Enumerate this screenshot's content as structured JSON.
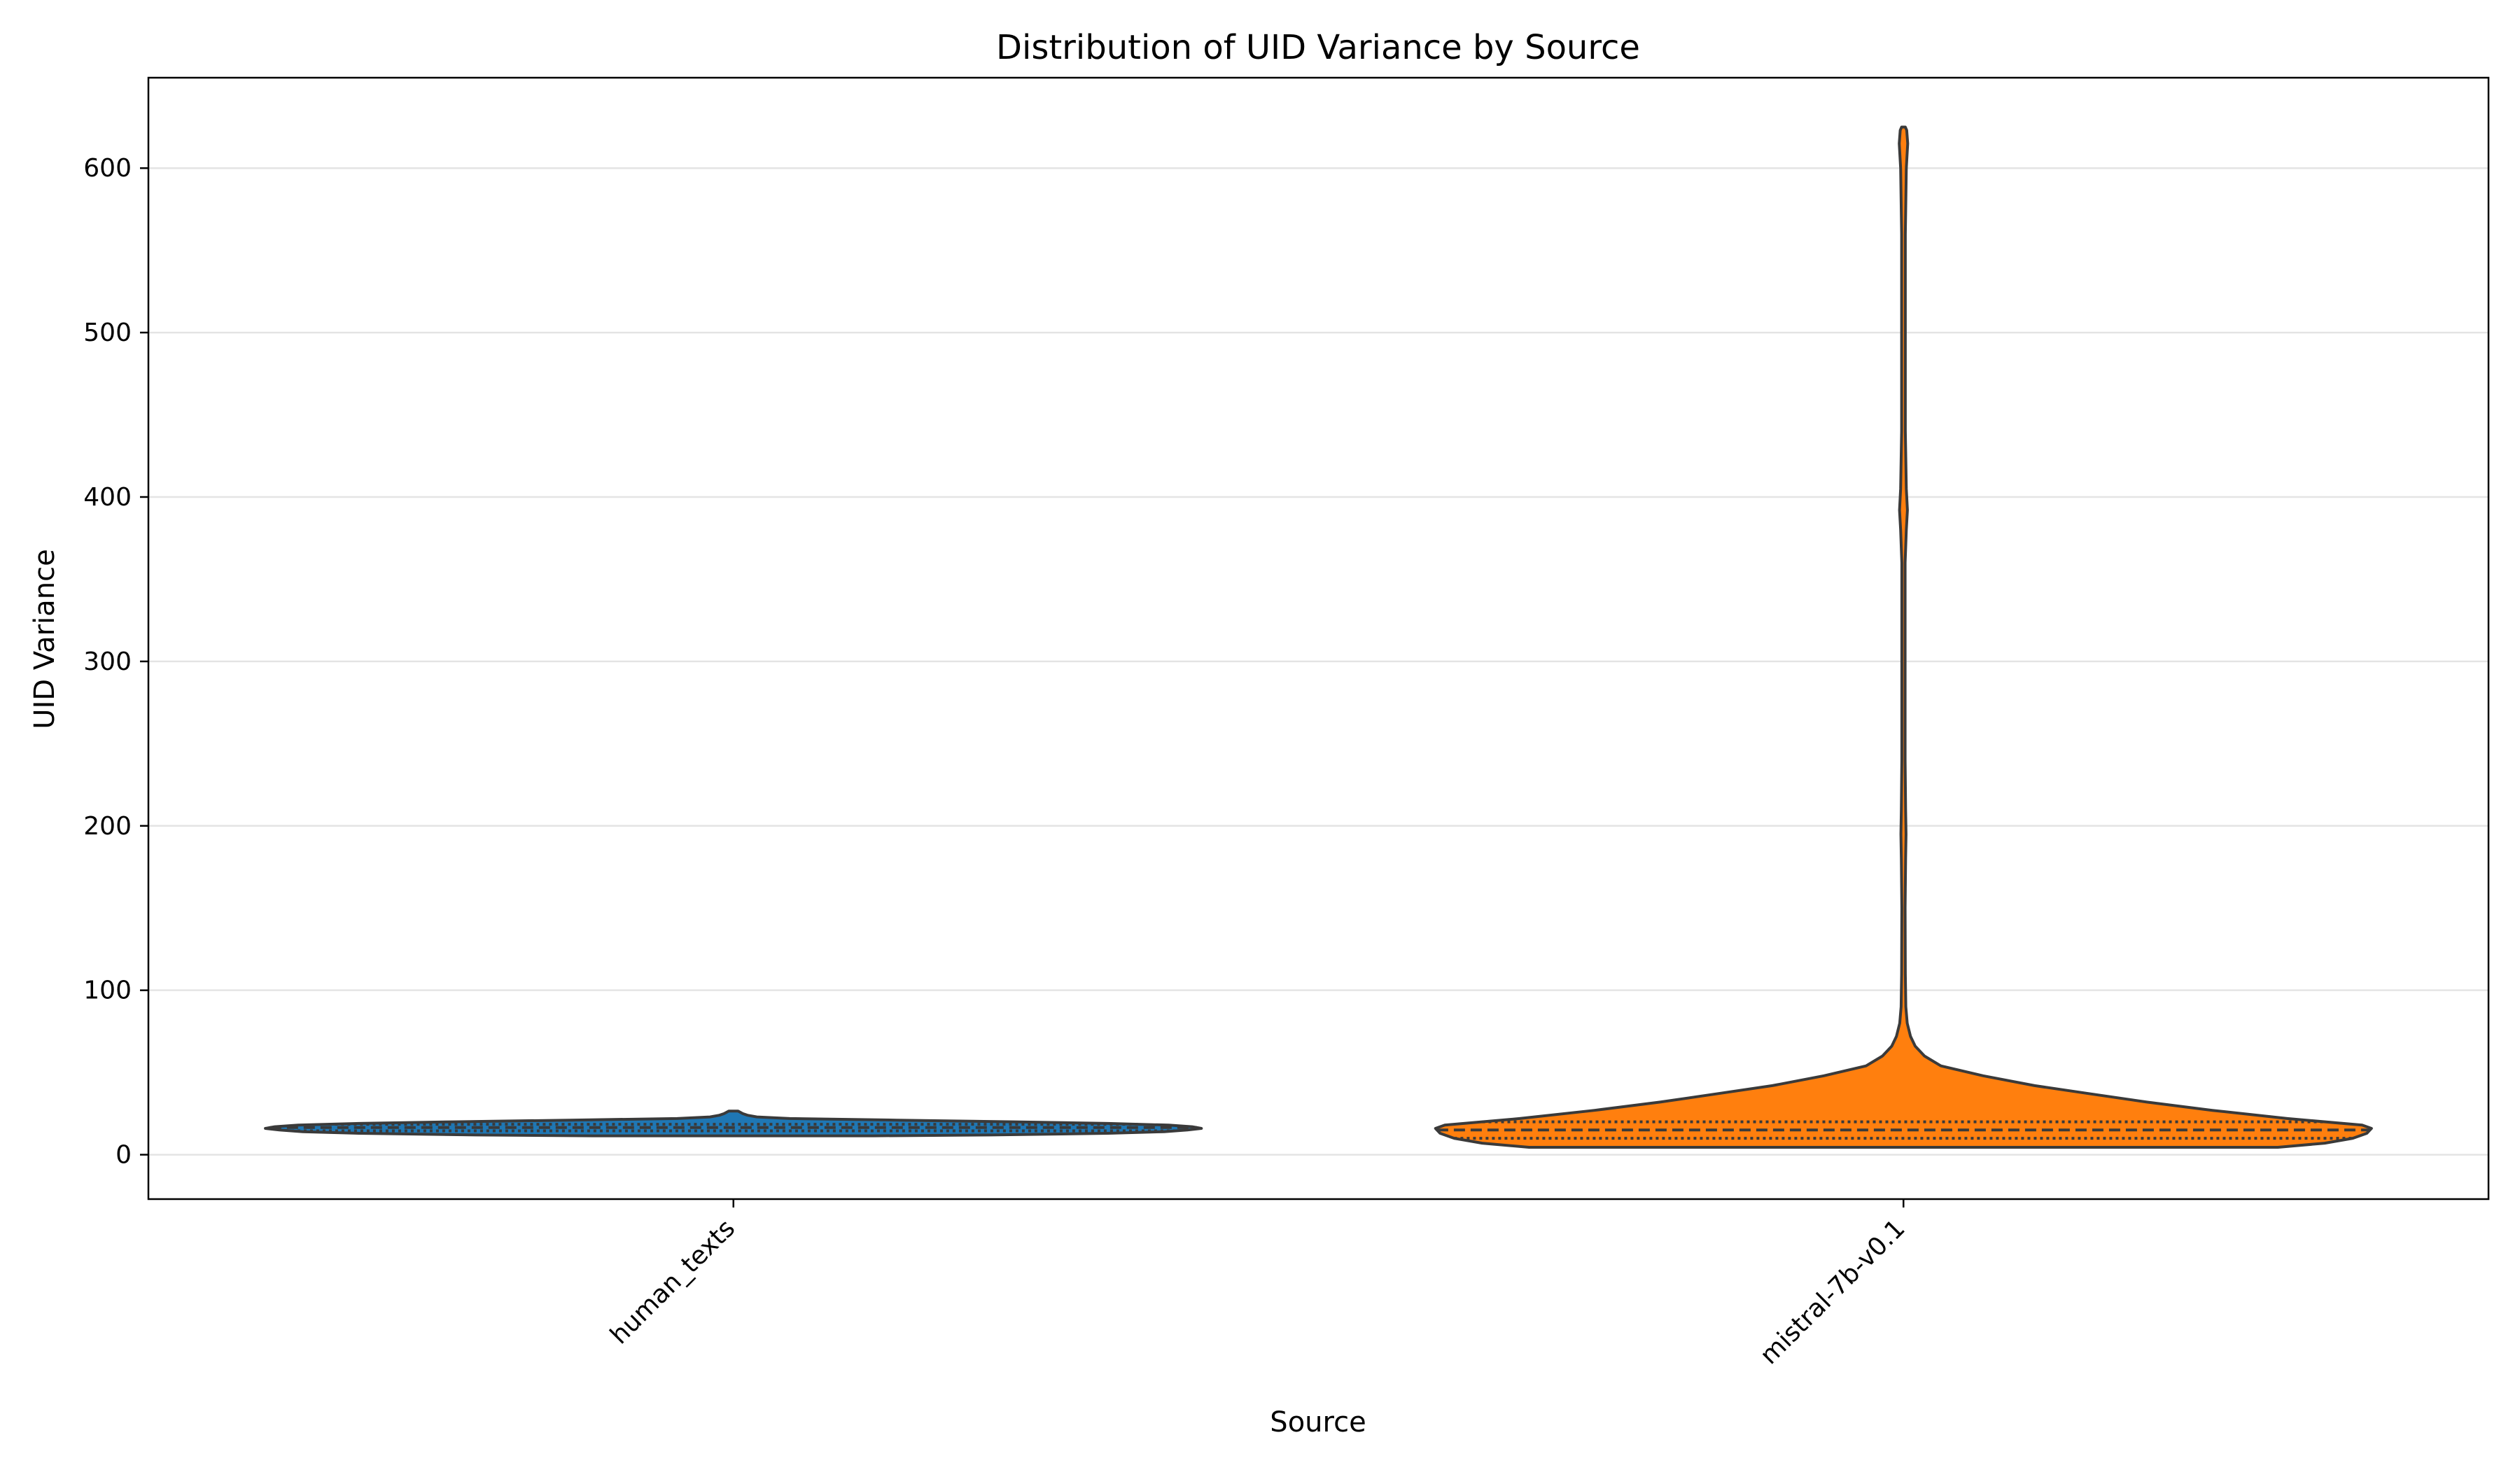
{
  "chart_data": {
    "type": "violin",
    "title": "Distribution of UID Variance by Source",
    "xlabel": "Source",
    "ylabel": "UID Variance",
    "ylim": [
      -27,
      655
    ],
    "yticks": [
      0,
      100,
      200,
      300,
      400,
      500,
      600
    ],
    "grid": "horizontal",
    "legend": "none",
    "inner": "quartile",
    "categories": [
      "human_texts",
      "mistral-7b-v0.1"
    ],
    "series": [
      {
        "category": "human_texts",
        "color": "#1f77b4",
        "quartiles": [
          14.5,
          16.5,
          18.5
        ],
        "outline": [
          [
            11.5,
            0.3
          ],
          [
            12,
            0.55
          ],
          [
            13,
            0.8
          ],
          [
            14,
            0.92
          ],
          [
            15,
            0.97
          ],
          [
            16,
            1.0
          ],
          [
            17,
            0.98
          ],
          [
            18,
            0.93
          ],
          [
            19,
            0.8
          ],
          [
            20,
            0.6
          ],
          [
            21,
            0.35
          ],
          [
            22,
            0.12
          ],
          [
            23,
            0.05
          ],
          [
            24,
            0.03
          ],
          [
            25,
            0.02
          ],
          [
            26.5,
            0.01
          ]
        ]
      },
      {
        "category": "mistral-7b-v0.1",
        "color": "#ff7f0e",
        "quartiles": [
          10,
          15,
          20
        ],
        "outline": [
          [
            4.5,
            0.8
          ],
          [
            7,
            0.9
          ],
          [
            10,
            0.96
          ],
          [
            13,
            0.99
          ],
          [
            16,
            1.0
          ],
          [
            18,
            0.98
          ],
          [
            22,
            0.82
          ],
          [
            27,
            0.66
          ],
          [
            32,
            0.52
          ],
          [
            37,
            0.4
          ],
          [
            42,
            0.28
          ],
          [
            48,
            0.17
          ],
          [
            54,
            0.08
          ],
          [
            60,
            0.045
          ],
          [
            66,
            0.025
          ],
          [
            72,
            0.015
          ],
          [
            80,
            0.008
          ],
          [
            90,
            0.005
          ],
          [
            110,
            0.004
          ],
          [
            150,
            0.0035
          ],
          [
            180,
            0.0045
          ],
          [
            195,
            0.0055
          ],
          [
            210,
            0.0045
          ],
          [
            240,
            0.0035
          ],
          [
            300,
            0.0035
          ],
          [
            360,
            0.0035
          ],
          [
            380,
            0.006
          ],
          [
            392,
            0.0085
          ],
          [
            405,
            0.006
          ],
          [
            440,
            0.004
          ],
          [
            500,
            0.004
          ],
          [
            560,
            0.004
          ],
          [
            600,
            0.006
          ],
          [
            615,
            0.009
          ],
          [
            623,
            0.007
          ],
          [
            625,
            0.004
          ]
        ]
      }
    ]
  }
}
